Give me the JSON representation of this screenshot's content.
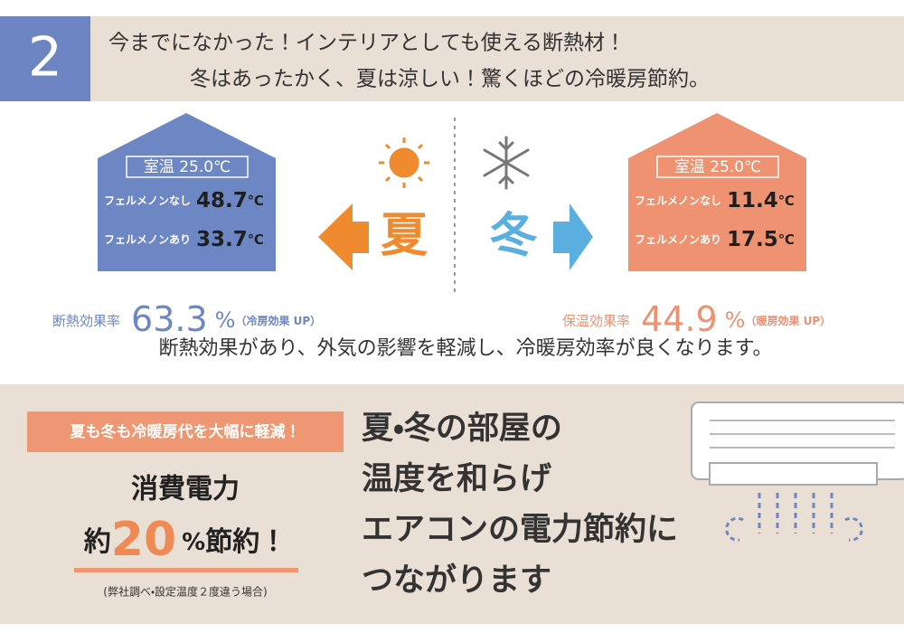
{
  "header": {
    "number": "2",
    "line1": "今までになかった！インテリアとしても使える断熱材！",
    "line2": "冬はあったかく、夏は涼しい！驚くほどの冷暖房節約。"
  },
  "summer": {
    "label": "夏",
    "room_temp": "室温 25.0℃",
    "rows": [
      {
        "label": "フェルメノンなし",
        "value": 48.7,
        "unit": "℃"
      },
      {
        "label": "フェルメノンあり",
        "value": 33.7,
        "unit": "℃"
      }
    ],
    "effect": {
      "label": "断熱効果率",
      "value": 63.3,
      "unit": "%",
      "note": "（冷房効果 UP）"
    }
  },
  "winter": {
    "label": "冬",
    "room_temp": "室温 25.0℃",
    "rows": [
      {
        "label": "フェルメノンなし",
        "value": 11.4,
        "unit": "℃"
      },
      {
        "label": "フェルメノンあり",
        "value": 17.5,
        "unit": "℃"
      }
    ],
    "effect": {
      "label": "保温効果率",
      "value": 44.9,
      "unit": "%",
      "note": "（暖房効果 UP）"
    }
  },
  "summary": "断熱効果があり、外気の影響を軽減し、冷暖房効率が良くなります。",
  "savings": {
    "banner": "夏も冬も冷暖房代を大幅に軽減！",
    "title": "消費電力",
    "prefix": "約",
    "value": 20,
    "unit": "%",
    "suffix": "節約！",
    "note": "(弊社調べ・設定温度２度違う場合)"
  },
  "message": {
    "lines": [
      "夏・冬の部屋の",
      "温度を和らげ",
      "エアコンの電力節約に",
      "つながります"
    ]
  }
}
